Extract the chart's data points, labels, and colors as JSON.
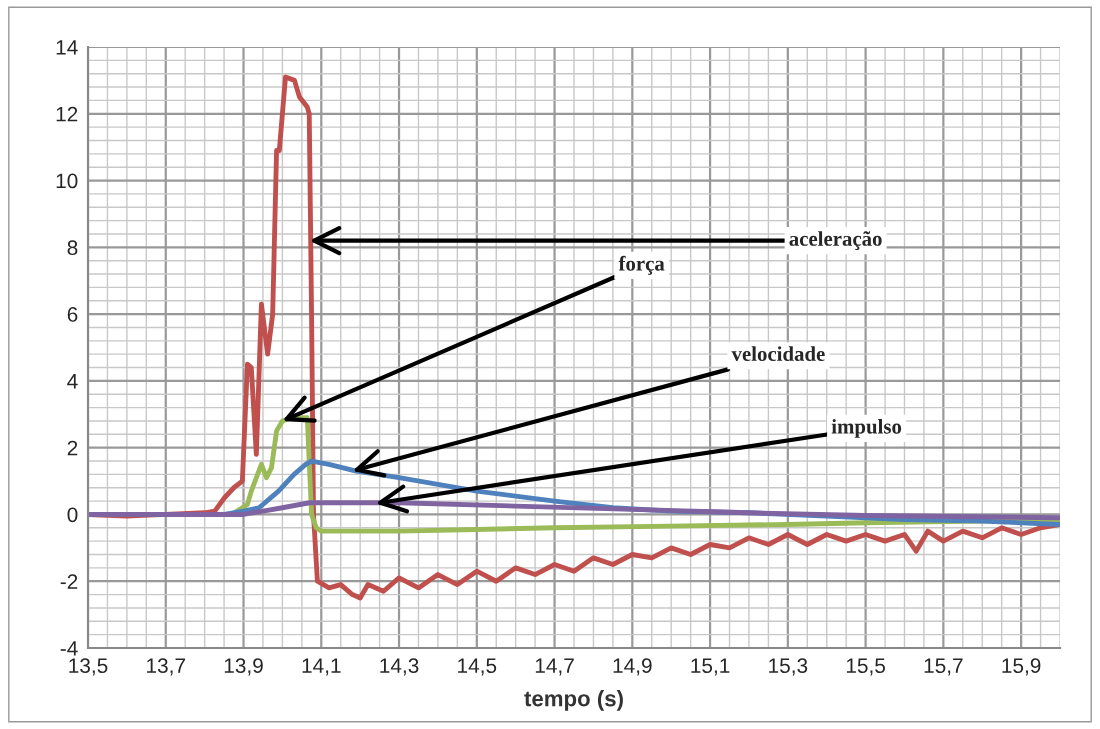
{
  "chart_data": {
    "type": "line",
    "xlabel": "tempo (s)",
    "xlim": [
      13.5,
      16.0
    ],
    "ylim": [
      -4,
      14
    ],
    "xticks": [
      {
        "value": 13.5,
        "label": "13,5"
      },
      {
        "value": 13.7,
        "label": "13,7"
      },
      {
        "value": 13.9,
        "label": "13,9"
      },
      {
        "value": 14.1,
        "label": "14,1"
      },
      {
        "value": 14.3,
        "label": "14,3"
      },
      {
        "value": 14.5,
        "label": "14,5"
      },
      {
        "value": 14.7,
        "label": "14,7"
      },
      {
        "value": 14.9,
        "label": "14,9"
      },
      {
        "value": 15.1,
        "label": "15,1"
      },
      {
        "value": 15.3,
        "label": "15,3"
      },
      {
        "value": 15.5,
        "label": "15,5"
      },
      {
        "value": 15.7,
        "label": "15,7"
      },
      {
        "value": 15.9,
        "label": "15,9"
      }
    ],
    "yticks": [
      -4,
      -2,
      0,
      2,
      4,
      6,
      8,
      10,
      12,
      14
    ],
    "grid": true,
    "legend": false,
    "line_style": "solid",
    "marker": "none",
    "series": [
      {
        "color": "#c0504d",
        "x": [
          13.5,
          13.6,
          13.7,
          13.8,
          13.826,
          13.851,
          13.875,
          13.897,
          13.91,
          13.92,
          13.933,
          13.946,
          13.962,
          13.975,
          13.985,
          13.992,
          14.008,
          14.031,
          14.044,
          14.064,
          14.069,
          14.075,
          14.08,
          14.09,
          14.12,
          14.15,
          14.18,
          14.2,
          14.22,
          14.26,
          14.3,
          14.35,
          14.4,
          14.45,
          14.5,
          14.55,
          14.6,
          14.65,
          14.7,
          14.75,
          14.8,
          14.85,
          14.9,
          14.95,
          15.0,
          15.05,
          15.1,
          15.15,
          15.2,
          15.25,
          15.3,
          15.35,
          15.4,
          15.45,
          15.5,
          15.55,
          15.6,
          15.63,
          15.66,
          15.7,
          15.75,
          15.8,
          15.85,
          15.9,
          15.95,
          16.0
        ],
        "values": [
          0,
          -0.05,
          0,
          0.05,
          0.1,
          0.5,
          0.8,
          1.0,
          4.5,
          4.4,
          1.8,
          6.3,
          4.8,
          6.0,
          10.9,
          10.9,
          13.1,
          13.0,
          12.5,
          12.2,
          12.0,
          6.0,
          0,
          -2.0,
          -2.2,
          -2.1,
          -2.4,
          -2.5,
          -2.1,
          -2.3,
          -1.9,
          -2.2,
          -1.8,
          -2.1,
          -1.7,
          -2.0,
          -1.6,
          -1.8,
          -1.5,
          -1.7,
          -1.3,
          -1.5,
          -1.2,
          -1.3,
          -1.0,
          -1.2,
          -0.9,
          -1.0,
          -0.7,
          -0.9,
          -0.6,
          -0.9,
          -0.6,
          -0.8,
          -0.6,
          -0.8,
          -0.6,
          -1.1,
          -0.5,
          -0.8,
          -0.5,
          -0.7,
          -0.4,
          -0.6,
          -0.4,
          -0.3
        ]
      },
      {
        "color": "#9bbb59",
        "x": [
          13.5,
          13.87,
          13.91,
          13.92,
          13.946,
          13.959,
          13.972,
          13.985,
          14.0,
          14.026,
          14.064,
          14.075,
          14.087,
          14.1,
          14.2,
          14.3,
          14.5,
          14.7,
          15.0,
          15.3,
          15.5,
          15.8,
          16.0
        ],
        "values": [
          0,
          0,
          0.3,
          0.7,
          1.5,
          1.1,
          1.4,
          2.5,
          2.8,
          2.9,
          2.9,
          0,
          -0.4,
          -0.5,
          -0.5,
          -0.5,
          -0.45,
          -0.4,
          -0.35,
          -0.3,
          -0.25,
          -0.2,
          -0.15
        ]
      },
      {
        "color": "#4f81bd",
        "x": [
          13.5,
          13.85,
          13.9,
          13.94,
          13.99,
          14.03,
          14.06,
          14.075,
          14.12,
          14.19,
          14.3,
          14.5,
          14.7,
          14.85,
          15.0,
          15.2,
          15.4,
          15.6,
          15.8,
          16.0
        ],
        "values": [
          0,
          0,
          0.1,
          0.2,
          0.7,
          1.2,
          1.5,
          1.6,
          1.5,
          1.3,
          1.1,
          0.7,
          0.4,
          0.2,
          0.1,
          0.05,
          -0.05,
          -0.15,
          -0.2,
          -0.3
        ]
      },
      {
        "color": "#8064a2",
        "x": [
          13.5,
          13.9,
          13.95,
          14.0,
          14.07,
          14.3,
          14.6,
          14.9,
          15.2,
          15.5,
          16.0
        ],
        "values": [
          0,
          0,
          0.1,
          0.2,
          0.35,
          0.35,
          0.25,
          0.15,
          0.05,
          -0.03,
          -0.1
        ]
      }
    ],
    "annotations": [
      {
        "text": "aceleração",
        "x": 14.07,
        "y": 8.2
      },
      {
        "text": "força",
        "x": 14.0,
        "y": 2.8
      },
      {
        "text": "velocidade",
        "x": 14.18,
        "y": 1.3
      },
      {
        "text": "impulso",
        "x": 14.24,
        "y": 0.33
      }
    ]
  }
}
